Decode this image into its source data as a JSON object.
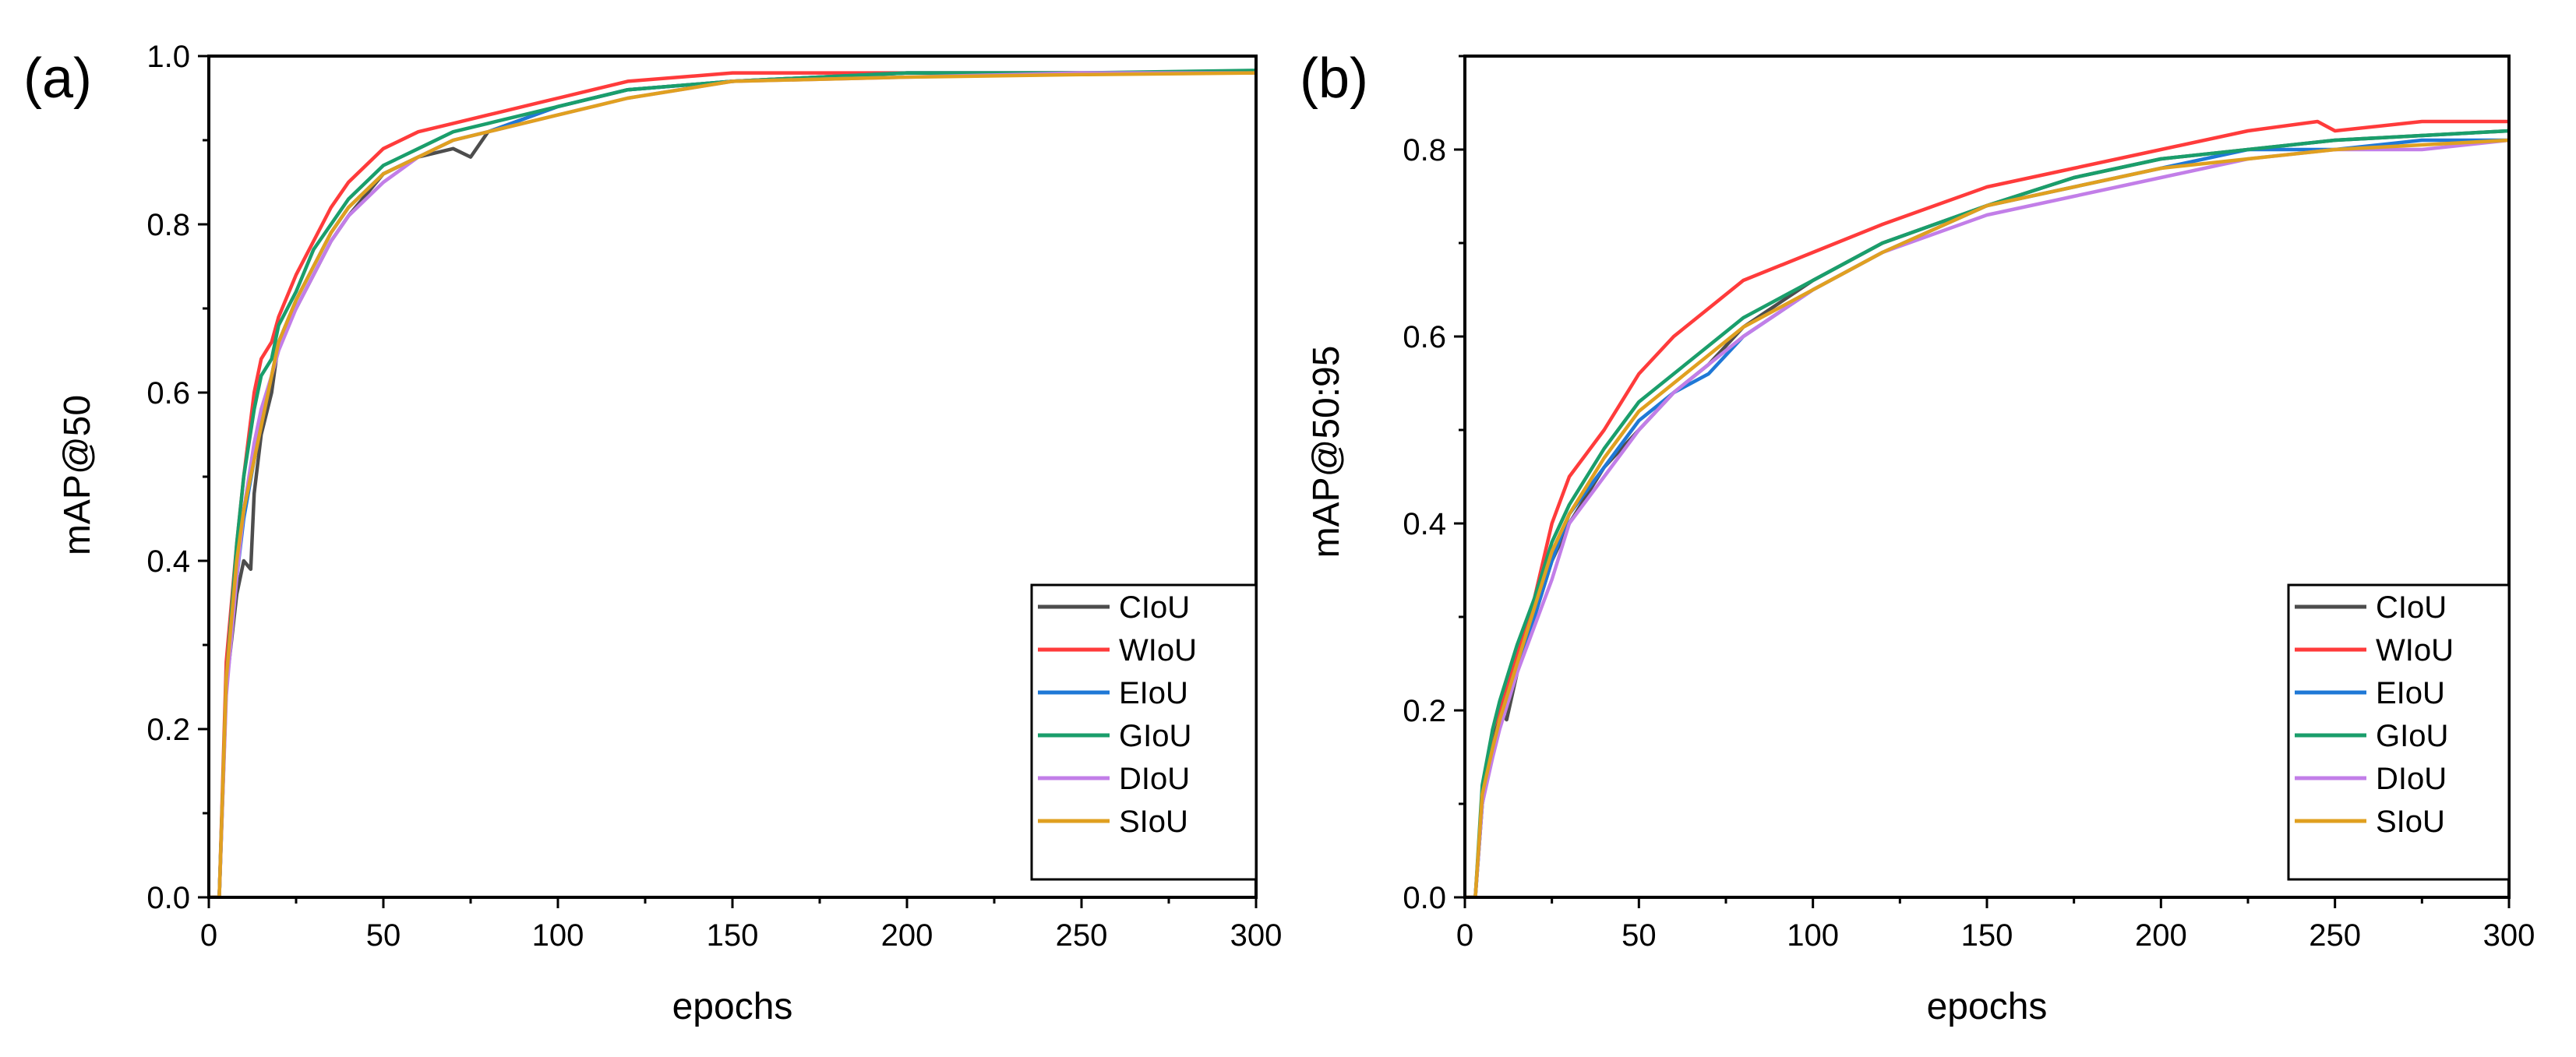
{
  "chart_data": [
    {
      "type": "line",
      "panel_label": "(a)",
      "title": "",
      "xlabel": "epochs",
      "ylabel": "mAP@50",
      "xlim": [
        0,
        300
      ],
      "ylim": [
        0,
        1.0
      ],
      "xticks": [
        0,
        50,
        100,
        150,
        200,
        250,
        300
      ],
      "yticks": [
        0.0,
        0.2,
        0.4,
        0.6,
        0.8,
        1.0
      ],
      "ytick_labels": [
        "0.0",
        "0.2",
        "0.4",
        "0.6",
        "0.8",
        "1.0"
      ],
      "grid": false,
      "legend_position": "bottom-right",
      "series": [
        {
          "name": "CIoU",
          "color": "#4d4d4d",
          "x": [
            0,
            3,
            5,
            8,
            10,
            12,
            13,
            15,
            18,
            20,
            25,
            30,
            35,
            40,
            50,
            60,
            70,
            75,
            80,
            100,
            120,
            150,
            200,
            250,
            300
          ],
          "y": [
            0,
            0,
            0.25,
            0.36,
            0.4,
            0.39,
            0.48,
            0.55,
            0.6,
            0.66,
            0.7,
            0.74,
            0.78,
            0.81,
            0.86,
            0.88,
            0.89,
            0.88,
            0.91,
            0.94,
            0.96,
            0.97,
            0.98,
            0.98,
            0.98
          ]
        },
        {
          "name": "WIoU",
          "color": "#ff3b3b",
          "x": [
            0,
            3,
            5,
            8,
            10,
            13,
            15,
            18,
            20,
            25,
            30,
            35,
            40,
            50,
            60,
            70,
            80,
            100,
            120,
            150,
            200,
            250,
            300
          ],
          "y": [
            0,
            0,
            0.28,
            0.42,
            0.5,
            0.6,
            0.64,
            0.66,
            0.69,
            0.74,
            0.78,
            0.82,
            0.85,
            0.89,
            0.91,
            0.92,
            0.93,
            0.95,
            0.97,
            0.98,
            0.98,
            0.98,
            0.98
          ]
        },
        {
          "name": "EIoU",
          "color": "#1f78d6",
          "x": [
            0,
            3,
            5,
            8,
            10,
            13,
            15,
            18,
            20,
            25,
            30,
            35,
            40,
            50,
            60,
            70,
            80,
            100,
            120,
            150,
            200,
            250,
            300
          ],
          "y": [
            0,
            0,
            0.25,
            0.38,
            0.45,
            0.52,
            0.57,
            0.62,
            0.66,
            0.71,
            0.75,
            0.79,
            0.82,
            0.86,
            0.88,
            0.9,
            0.91,
            0.94,
            0.96,
            0.97,
            0.98,
            0.98,
            0.98
          ]
        },
        {
          "name": "GIoU",
          "color": "#1a9e6b",
          "x": [
            0,
            3,
            5,
            8,
            10,
            13,
            15,
            18,
            20,
            25,
            30,
            35,
            40,
            50,
            60,
            70,
            80,
            100,
            120,
            150,
            200,
            250,
            300
          ],
          "y": [
            0,
            0,
            0.26,
            0.42,
            0.5,
            0.58,
            0.62,
            0.64,
            0.68,
            0.72,
            0.77,
            0.8,
            0.83,
            0.87,
            0.89,
            0.91,
            0.92,
            0.94,
            0.96,
            0.97,
            0.98,
            0.98,
            0.983
          ]
        },
        {
          "name": "DIoU",
          "color": "#c27ee8",
          "x": [
            0,
            3,
            5,
            8,
            10,
            13,
            15,
            18,
            20,
            25,
            30,
            35,
            40,
            50,
            60,
            70,
            80,
            100,
            120,
            150,
            200,
            250,
            300
          ],
          "y": [
            0,
            0,
            0.24,
            0.38,
            0.46,
            0.54,
            0.58,
            0.62,
            0.65,
            0.7,
            0.74,
            0.78,
            0.81,
            0.85,
            0.88,
            0.9,
            0.91,
            0.93,
            0.95,
            0.97,
            0.975,
            0.98,
            0.98
          ]
        },
        {
          "name": "SIoU",
          "color": "#e0a020",
          "x": [
            0,
            3,
            5,
            8,
            10,
            13,
            15,
            18,
            20,
            25,
            30,
            35,
            40,
            50,
            60,
            70,
            80,
            100,
            120,
            150,
            200,
            250,
            300
          ],
          "y": [
            0,
            0,
            0.26,
            0.4,
            0.46,
            0.52,
            0.56,
            0.62,
            0.66,
            0.71,
            0.75,
            0.79,
            0.82,
            0.86,
            0.88,
            0.9,
            0.91,
            0.93,
            0.95,
            0.97,
            0.975,
            0.978,
            0.98
          ]
        }
      ]
    },
    {
      "type": "line",
      "panel_label": "(b)",
      "title": "",
      "xlabel": "epochs",
      "ylabel": "mAP@50:95",
      "xlim": [
        0,
        300
      ],
      "ylim": [
        0,
        0.9
      ],
      "xticks": [
        0,
        50,
        100,
        150,
        200,
        250,
        300
      ],
      "yticks": [
        0.0,
        0.2,
        0.4,
        0.6,
        0.8
      ],
      "ytick_labels": [
        "0.0",
        "0.2",
        "0.4",
        "0.6",
        "0.8"
      ],
      "grid": false,
      "legend_position": "bottom-right",
      "series": [
        {
          "name": "CIoU",
          "color": "#4d4d4d",
          "x": [
            0,
            3,
            5,
            8,
            10,
            12,
            15,
            20,
            25,
            30,
            40,
            50,
            60,
            70,
            80,
            100,
            120,
            150,
            175,
            200,
            225,
            250,
            275,
            300
          ],
          "y": [
            0,
            0,
            0.1,
            0.16,
            0.2,
            0.19,
            0.24,
            0.3,
            0.36,
            0.4,
            0.46,
            0.5,
            0.54,
            0.57,
            0.61,
            0.66,
            0.7,
            0.74,
            0.77,
            0.79,
            0.8,
            0.81,
            0.815,
            0.82
          ]
        },
        {
          "name": "WIoU",
          "color": "#ff3b3b",
          "x": [
            0,
            3,
            5,
            8,
            10,
            15,
            20,
            25,
            30,
            40,
            50,
            60,
            70,
            80,
            100,
            120,
            150,
            175,
            200,
            225,
            245,
            250,
            275,
            300
          ],
          "y": [
            0,
            0,
            0.11,
            0.18,
            0.2,
            0.26,
            0.32,
            0.4,
            0.45,
            0.5,
            0.56,
            0.6,
            0.63,
            0.66,
            0.69,
            0.72,
            0.76,
            0.78,
            0.8,
            0.82,
            0.83,
            0.82,
            0.83,
            0.83
          ]
        },
        {
          "name": "EIoU",
          "color": "#1f78d6",
          "x": [
            0,
            3,
            5,
            8,
            10,
            15,
            20,
            25,
            30,
            40,
            50,
            60,
            70,
            80,
            100,
            120,
            150,
            175,
            200,
            225,
            250,
            275,
            300
          ],
          "y": [
            0,
            0,
            0.1,
            0.16,
            0.19,
            0.25,
            0.3,
            0.36,
            0.41,
            0.46,
            0.51,
            0.54,
            0.56,
            0.6,
            0.65,
            0.69,
            0.74,
            0.76,
            0.78,
            0.8,
            0.8,
            0.81,
            0.81
          ]
        },
        {
          "name": "GIoU",
          "color": "#1a9e6b",
          "x": [
            0,
            3,
            5,
            8,
            10,
            15,
            20,
            25,
            30,
            40,
            50,
            60,
            70,
            80,
            100,
            120,
            150,
            175,
            200,
            225,
            250,
            275,
            300
          ],
          "y": [
            0,
            0,
            0.12,
            0.18,
            0.21,
            0.27,
            0.32,
            0.38,
            0.42,
            0.48,
            0.53,
            0.56,
            0.59,
            0.62,
            0.66,
            0.7,
            0.74,
            0.77,
            0.79,
            0.8,
            0.81,
            0.815,
            0.82
          ]
        },
        {
          "name": "DIoU",
          "color": "#c27ee8",
          "x": [
            0,
            3,
            5,
            8,
            10,
            15,
            20,
            25,
            30,
            40,
            50,
            60,
            70,
            80,
            100,
            120,
            150,
            175,
            200,
            225,
            250,
            275,
            300
          ],
          "y": [
            0,
            0,
            0.1,
            0.15,
            0.18,
            0.24,
            0.29,
            0.34,
            0.4,
            0.45,
            0.5,
            0.54,
            0.57,
            0.6,
            0.65,
            0.69,
            0.73,
            0.75,
            0.77,
            0.79,
            0.8,
            0.8,
            0.81
          ]
        },
        {
          "name": "SIoU",
          "color": "#e0a020",
          "x": [
            0,
            3,
            5,
            8,
            10,
            15,
            20,
            25,
            30,
            40,
            50,
            60,
            70,
            80,
            100,
            120,
            150,
            175,
            200,
            225,
            250,
            275,
            300
          ],
          "y": [
            0,
            0,
            0.11,
            0.16,
            0.19,
            0.25,
            0.31,
            0.37,
            0.41,
            0.47,
            0.52,
            0.55,
            0.58,
            0.61,
            0.65,
            0.69,
            0.74,
            0.76,
            0.78,
            0.79,
            0.8,
            0.805,
            0.81
          ]
        }
      ]
    }
  ]
}
